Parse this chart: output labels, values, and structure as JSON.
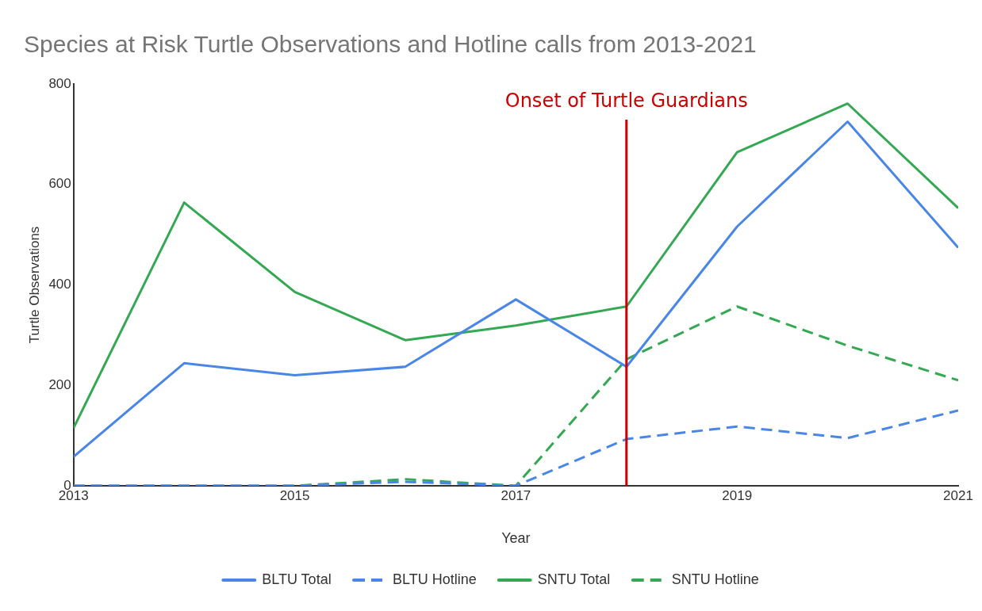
{
  "chart_data": {
    "type": "line",
    "title": "Species at Risk Turtle Observations and Hotline calls from 2013-2021",
    "xlabel": "Year",
    "ylabel": "Turtle Observations",
    "x": [
      2013,
      2014,
      2015,
      2016,
      2017,
      2018,
      2019,
      2020,
      2021
    ],
    "series": [
      {
        "name": "BLTU Total",
        "color": "#4a86e8",
        "line_style": "solid",
        "values": [
          58,
          244,
          220,
          237,
          371,
          237,
          516,
          725,
          474
        ]
      },
      {
        "name": "BLTU Hotline",
        "color": "#4a86e8",
        "line_style": "dashed",
        "values": [
          0,
          0,
          0,
          8,
          0,
          93,
          118,
          95,
          150
        ]
      },
      {
        "name": "SNTU Total",
        "color": "#34a853",
        "line_style": "solid",
        "values": [
          115,
          564,
          386,
          290,
          319,
          357,
          664,
          761,
          553
        ]
      },
      {
        "name": "SNTU Hotline",
        "color": "#34a853",
        "line_style": "dashed",
        "values": [
          0,
          0,
          0,
          13,
          0,
          252,
          357,
          279,
          210
        ]
      }
    ],
    "xlim": [
      2013,
      2021
    ],
    "xticks": [
      2013,
      2015,
      2017,
      2019,
      2021
    ],
    "ylim": [
      0,
      800
    ],
    "yticks": [
      0,
      200,
      400,
      600,
      800
    ],
    "ref_lines": [
      {
        "axis": "x",
        "value": 2018,
        "label": "Onset of Turtle Guardians",
        "color": "#cc0000"
      }
    ],
    "grid": false,
    "legend": "bottom",
    "marker": "none"
  }
}
